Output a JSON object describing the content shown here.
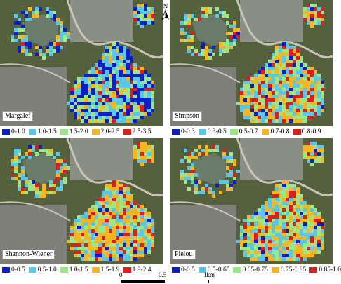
{
  "panels": [
    {
      "name": "Margalef",
      "legend": [
        {
          "label": "0-1.0",
          "color": "#0a1fc8"
        },
        {
          "label": "1.0-1.5",
          "color": "#59c7e8"
        },
        {
          "label": "1.5-2.0",
          "color": "#9ee58a"
        },
        {
          "label": "2.0-2.5",
          "color": "#f5b622"
        },
        {
          "label": "2.5-3.5",
          "color": "#d9201c"
        }
      ]
    },
    {
      "name": "Simpson",
      "legend": [
        {
          "label": "0-0.3",
          "color": "#0a1fc8"
        },
        {
          "label": "0.3-0.5",
          "color": "#59c7e8"
        },
        {
          "label": "0.5-0.7",
          "color": "#9ee58a"
        },
        {
          "label": "0.7-0.8",
          "color": "#f5b622"
        },
        {
          "label": "0.8-0.9",
          "color": "#d9201c"
        }
      ]
    },
    {
      "name": "Shannon-Wiener",
      "legend": [
        {
          "label": "0-0.5",
          "color": "#0a1fc8"
        },
        {
          "label": "0.5-1.0",
          "color": "#59c7e8"
        },
        {
          "label": "1.0-1.5",
          "color": "#9ee58a"
        },
        {
          "label": "1.5-1.9",
          "color": "#f5b622"
        },
        {
          "label": "1.9-2.4",
          "color": "#d9201c"
        }
      ]
    },
    {
      "name": "Pielou",
      "legend": [
        {
          "label": "0-0.5",
          "color": "#0a1fc8"
        },
        {
          "label": "0.5-0.65",
          "color": "#59c7e8"
        },
        {
          "label": "0.65-0.75",
          "color": "#9ee58a"
        },
        {
          "label": "0.75-0.85",
          "color": "#f5b622"
        },
        {
          "label": "0.85-1.0",
          "color": "#d9201c"
        }
      ]
    }
  ],
  "north_arrow": {
    "label": "N"
  },
  "scale_bar": {
    "ticks": [
      "0",
      "0.5",
      "1km"
    ]
  }
}
